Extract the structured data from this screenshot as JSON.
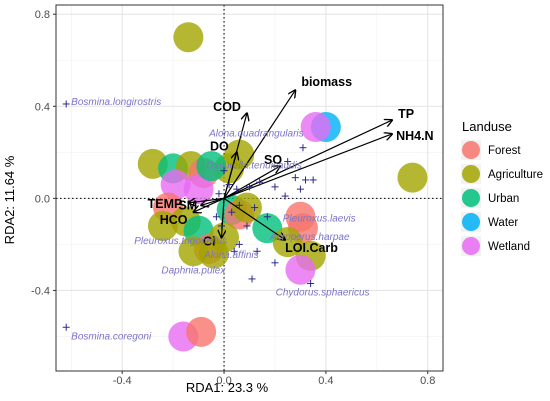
{
  "chart_data": {
    "type": "biplot",
    "xlabel": "RDA1: 23.3 %",
    "ylabel": "RDA2: 11.64 %",
    "xlim": [
      -0.66,
      0.86
    ],
    "ylim": [
      -0.75,
      0.84
    ],
    "x_ticks": [
      -0.4,
      0.0,
      0.4,
      0.8
    ],
    "y_ticks": [
      -0.4,
      0.0,
      0.4,
      0.8
    ],
    "x_tick_labels": [
      "-0.4",
      "0.0",
      "0.4",
      "0.8"
    ],
    "y_tick_labels": [
      "-0.4",
      "0.0",
      "0.4",
      "0.8"
    ],
    "grid": true,
    "reference_lines": "dotted lines at x=0 and y=0",
    "legend": {
      "title": "Landuse",
      "placement": "right",
      "items": [
        {
          "name": "Forest",
          "color": "#f8766d"
        },
        {
          "name": "Agriculture",
          "color": "#a3a500"
        },
        {
          "name": "Urban",
          "color": "#00bf7d"
        },
        {
          "name": "Water",
          "color": "#00b0f6"
        },
        {
          "name": "Wetland",
          "color": "#e76bf3"
        }
      ]
    },
    "env_vectors": [
      {
        "label": "biomass",
        "x": 0.28,
        "y": 0.47
      },
      {
        "label": "COD",
        "x": 0.09,
        "y": 0.37
      },
      {
        "label": "TP",
        "x": 0.66,
        "y": 0.34
      },
      {
        "label": "NH4.N",
        "x": 0.66,
        "y": 0.28
      },
      {
        "label": "DO",
        "x": 0.05,
        "y": 0.2
      },
      {
        "label": "SO",
        "x": 0.22,
        "y": 0.14
      },
      {
        "label": "LOI.Carb",
        "x": 0.24,
        "y": -0.18
      },
      {
        "label": "Cl",
        "x": -0.01,
        "y": -0.17
      },
      {
        "label": "TEMP",
        "x": -0.14,
        "y": -0.02
      },
      {
        "label": "SM",
        "x": -0.09,
        "y": -0.03
      },
      {
        "label": "HCO",
        "x": -0.12,
        "y": -0.06
      }
    ],
    "species": [
      {
        "label": "Bosmina.longirostris",
        "x": -0.62,
        "y": 0.41
      },
      {
        "label": "Alona.quadrangularis",
        "x": 0.02,
        "y": 0.26
      },
      {
        "label": "Oxyurella.tenuicaudis",
        "x": 0.04,
        "y": 0.13
      },
      {
        "label": "Pleuroxus.laevis",
        "x": 0.27,
        "y": -0.1
      },
      {
        "label": "Acroperus.harpae",
        "x": 0.22,
        "y": -0.18
      },
      {
        "label": "Pleuroxus.trigonellus",
        "x": -0.07,
        "y": -0.19
      },
      {
        "label": "Alona.affinis",
        "x": 0.02,
        "y": -0.26
      },
      {
        "label": "Daphnia.pulex",
        "x": -0.03,
        "y": -0.31
      },
      {
        "label": "Chydorus.sphaericus",
        "x": 0.34,
        "y": -0.37
      },
      {
        "label": "Bosmina.coregoni",
        "x": -0.62,
        "y": -0.56
      }
    ],
    "extra_species_points": [
      {
        "x": 0.31,
        "y": 0.22
      },
      {
        "x": 0.25,
        "y": 0.16
      },
      {
        "x": 0.28,
        "y": 0.09
      },
      {
        "x": 0.32,
        "y": 0.08
      },
      {
        "x": 0.35,
        "y": 0.08
      },
      {
        "x": 0.3,
        "y": 0.04
      },
      {
        "x": 0.24,
        "y": 0.01
      },
      {
        "x": 0.2,
        "y": 0.05
      },
      {
        "x": 0.14,
        "y": 0.07
      },
      {
        "x": 0.1,
        "y": 0.05
      },
      {
        "x": 0.05,
        "y": 0.04
      },
      {
        "x": 0.02,
        "y": 0.06
      },
      {
        "x": -0.02,
        "y": 0.02
      },
      {
        "x": 0.06,
        "y": -0.03
      },
      {
        "x": 0.12,
        "y": -0.04
      },
      {
        "x": 0.17,
        "y": -0.08
      },
      {
        "x": 0.09,
        "y": -0.12
      },
      {
        "x": 0.06,
        "y": -0.2
      },
      {
        "x": 0.04,
        "y": -0.23
      },
      {
        "x": -0.01,
        "y": -0.12
      },
      {
        "x": 0.2,
        "y": -0.28
      },
      {
        "x": 0.11,
        "y": -0.35
      },
      {
        "x": 0.13,
        "y": -0.23
      },
      {
        "x": 0.0,
        "y": 0.12
      },
      {
        "x": -0.03,
        "y": -0.08
      },
      {
        "x": 0.03,
        "y": -0.06
      }
    ],
    "sites": [
      {
        "x": -0.14,
        "y": 0.7,
        "landuse": "Agriculture"
      },
      {
        "x": 0.06,
        "y": 0.19,
        "landuse": "Agriculture"
      },
      {
        "x": 0.02,
        "y": 0.13,
        "landuse": "Agriculture"
      },
      {
        "x": 0.4,
        "y": 0.31,
        "landuse": "Water"
      },
      {
        "x": 0.36,
        "y": 0.31,
        "landuse": "Wetland"
      },
      {
        "x": 0.74,
        "y": 0.09,
        "landuse": "Agriculture"
      },
      {
        "x": -0.28,
        "y": 0.15,
        "landuse": "Agriculture"
      },
      {
        "x": -0.2,
        "y": 0.13,
        "landuse": "Urban"
      },
      {
        "x": -0.13,
        "y": 0.14,
        "landuse": "Agriculture"
      },
      {
        "x": -0.08,
        "y": 0.11,
        "landuse": "Forest"
      },
      {
        "x": -0.19,
        "y": 0.06,
        "landuse": "Wetland"
      },
      {
        "x": -0.1,
        "y": 0.04,
        "landuse": "Wetland"
      },
      {
        "x": -0.05,
        "y": 0.14,
        "landuse": "Urban"
      },
      {
        "x": -0.22,
        "y": -0.04,
        "landuse": "Forest"
      },
      {
        "x": -0.15,
        "y": -0.1,
        "landuse": "Agriculture"
      },
      {
        "x": -0.24,
        "y": -0.12,
        "landuse": "Agriculture"
      },
      {
        "x": -0.1,
        "y": -0.14,
        "landuse": "Urban"
      },
      {
        "x": -0.06,
        "y": -0.22,
        "landuse": "Forest"
      },
      {
        "x": -0.04,
        "y": -0.24,
        "landuse": "Agriculture"
      },
      {
        "x": -0.12,
        "y": -0.23,
        "landuse": "Agriculture"
      },
      {
        "x": 0.03,
        "y": -0.05,
        "landuse": "Urban"
      },
      {
        "x": 0.06,
        "y": -0.07,
        "landuse": "Forest"
      },
      {
        "x": 0.0,
        "y": -0.17,
        "landuse": "Agriculture"
      },
      {
        "x": 0.17,
        "y": -0.13,
        "landuse": "Urban"
      },
      {
        "x": 0.3,
        "y": -0.08,
        "landuse": "Forest"
      },
      {
        "x": 0.31,
        "y": -0.13,
        "landuse": "Forest"
      },
      {
        "x": 0.25,
        "y": -0.19,
        "landuse": "Agriculture"
      },
      {
        "x": 0.34,
        "y": -0.25,
        "landuse": "Agriculture"
      },
      {
        "x": 0.3,
        "y": -0.31,
        "landuse": "Wetland"
      },
      {
        "x": 0.09,
        "y": -0.04,
        "landuse": "Agriculture"
      },
      {
        "x": -0.16,
        "y": -0.6,
        "landuse": "Wetland"
      },
      {
        "x": -0.09,
        "y": -0.58,
        "landuse": "Forest"
      }
    ]
  }
}
